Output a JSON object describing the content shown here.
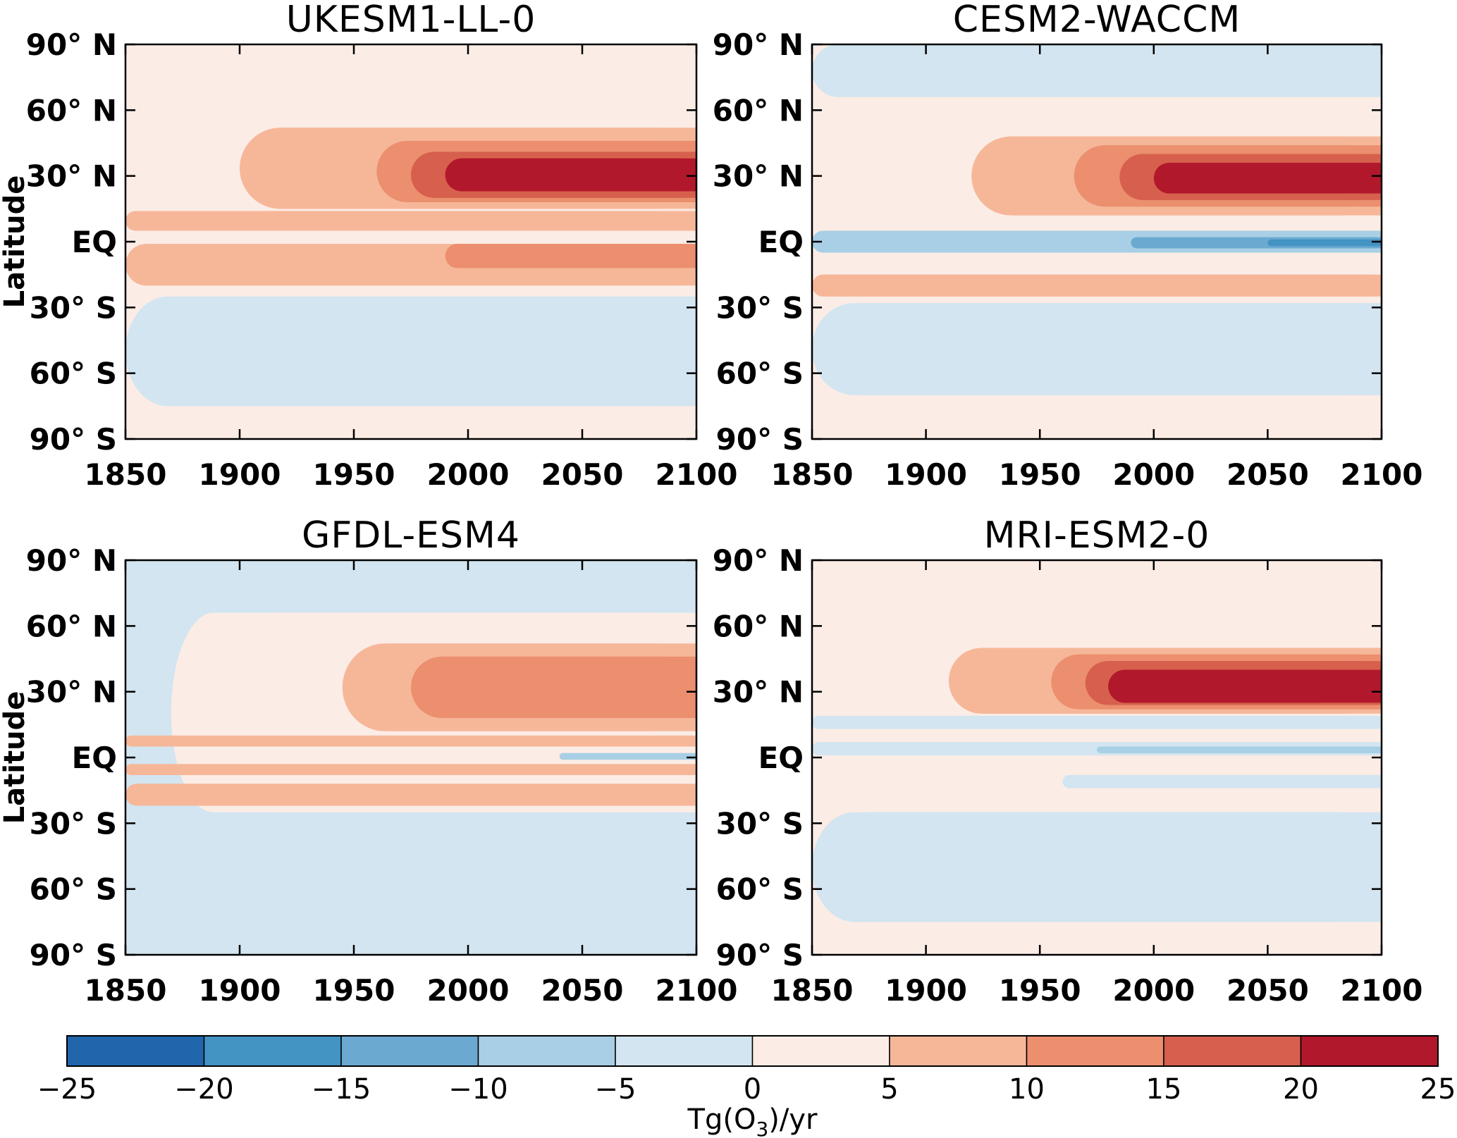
{
  "chart_data": {
    "type": "heatmap",
    "x_ticks": [
      "1850",
      "1900",
      "1950",
      "2000",
      "2050",
      "2100"
    ],
    "x_range": [
      1850,
      2100
    ],
    "y_ticks": [
      "90° N",
      "60° N",
      "30° N",
      "EQ",
      "30° S",
      "60° S",
      "90° S"
    ],
    "y_tick_values": [
      90,
      60,
      30,
      0,
      -30,
      -60,
      -90
    ],
    "y_range": [
      -90,
      90
    ],
    "ylabel": "Latitude",
    "panels": [
      {
        "title": "UKESM1-LL-0",
        "background_value": 2.5,
        "regions": [
          {
            "lat_top": -25,
            "lat_bottom": -75,
            "years": [
              1850,
              2100
            ],
            "value": -2.5
          },
          {
            "lat_top": 14,
            "lat_bottom": 5,
            "years": [
              1850,
              2100
            ],
            "value": 7.5
          },
          {
            "lat_top": -1,
            "lat_bottom": -20,
            "years": [
              1850,
              2100
            ],
            "value": 7.5
          },
          {
            "lat_top": -1,
            "lat_bottom": -12,
            "years": [
              1990,
              2100
            ],
            "value": 12.5
          },
          {
            "lat_top": 52,
            "lat_bottom": 15,
            "years": [
              1900,
              2100
            ],
            "value": 7.5
          },
          {
            "lat_top": 46,
            "lat_bottom": 18,
            "years": [
              1960,
              2100
            ],
            "value": 12.5
          },
          {
            "lat_top": 41,
            "lat_bottom": 20,
            "years": [
              1975,
              2100
            ],
            "value": 17.5
          },
          {
            "lat_top": 38,
            "lat_bottom": 23,
            "years": [
              1990,
              2100
            ],
            "value": 22.5
          }
        ]
      },
      {
        "title": "CESM2-WACCM",
        "background_value": 2.5,
        "regions": [
          {
            "lat_top": 90,
            "lat_bottom": 66,
            "years": [
              1850,
              2100
            ],
            "value": -2.5
          },
          {
            "lat_top": -28,
            "lat_bottom": -70,
            "years": [
              1850,
              2100
            ],
            "value": -2.5
          },
          {
            "lat_top": 5,
            "lat_bottom": -5,
            "years": [
              1850,
              2100
            ],
            "value": -7.5
          },
          {
            "lat_top": 2,
            "lat_bottom": -3,
            "years": [
              1990,
              2100
            ],
            "value": -12.5
          },
          {
            "lat_top": 1,
            "lat_bottom": -2,
            "years": [
              2050,
              2100
            ],
            "value": -17.5
          },
          {
            "lat_top": -15,
            "lat_bottom": -25,
            "years": [
              1850,
              2100
            ],
            "value": 7.5
          },
          {
            "lat_top": 48,
            "lat_bottom": 12,
            "years": [
              1920,
              2100
            ],
            "value": 7.5
          },
          {
            "lat_top": 44,
            "lat_bottom": 16,
            "years": [
              1965,
              2100
            ],
            "value": 12.5
          },
          {
            "lat_top": 40,
            "lat_bottom": 19,
            "years": [
              1985,
              2100
            ],
            "value": 17.5
          },
          {
            "lat_top": 36,
            "lat_bottom": 22,
            "years": [
              2000,
              2100
            ],
            "value": 22.5
          }
        ]
      },
      {
        "title": "GFDL-ESM4",
        "background_value": -2.5,
        "regions": [
          {
            "lat_top": 66,
            "lat_bottom": -25,
            "years": [
              1870,
              2100
            ],
            "value": 2.5
          },
          {
            "lat_top": 10,
            "lat_bottom": 5,
            "years": [
              1850,
              2100
            ],
            "value": 7.5
          },
          {
            "lat_top": -3,
            "lat_bottom": -8,
            "years": [
              1850,
              2100
            ],
            "value": 7.5
          },
          {
            "lat_top": -12,
            "lat_bottom": -22,
            "years": [
              1850,
              2100
            ],
            "value": 7.5
          },
          {
            "lat_top": 2,
            "lat_bottom": -1,
            "years": [
              2040,
              2100
            ],
            "value": -7.5
          },
          {
            "lat_top": 52,
            "lat_bottom": 12,
            "years": [
              1945,
              2100
            ],
            "value": 7.5
          },
          {
            "lat_top": 46,
            "lat_bottom": 18,
            "years": [
              1975,
              2100
            ],
            "value": 12.5
          }
        ]
      },
      {
        "title": "MRI-ESM2-0",
        "background_value": 2.5,
        "regions": [
          {
            "lat_top": -25,
            "lat_bottom": -75,
            "years": [
              1850,
              2100
            ],
            "value": -2.5
          },
          {
            "lat_top": 19,
            "lat_bottom": 13,
            "years": [
              1850,
              2100
            ],
            "value": -2.5
          },
          {
            "lat_top": 7,
            "lat_bottom": 1,
            "years": [
              1850,
              2100
            ],
            "value": -2.5
          },
          {
            "lat_top": 5,
            "lat_bottom": 2,
            "years": [
              1975,
              2100
            ],
            "value": -7.5
          },
          {
            "lat_top": -8,
            "lat_bottom": -14,
            "years": [
              1960,
              2100
            ],
            "value": -2.5
          },
          {
            "lat_top": 50,
            "lat_bottom": 20,
            "years": [
              1910,
              2100
            ],
            "value": 7.5
          },
          {
            "lat_top": 47,
            "lat_bottom": 22,
            "years": [
              1955,
              2100
            ],
            "value": 12.5
          },
          {
            "lat_top": 44,
            "lat_bottom": 24,
            "years": [
              1970,
              2100
            ],
            "value": 17.5
          },
          {
            "lat_top": 40,
            "lat_bottom": 25,
            "years": [
              1980,
              2080
            ],
            "value": 22.5
          }
        ]
      }
    ],
    "colorbar": {
      "ticks": [
        "−25",
        "−20",
        "−15",
        "−10",
        "−5",
        "0",
        "5",
        "10",
        "15",
        "20",
        "25"
      ],
      "range": [
        -25,
        25
      ],
      "bounds": [
        -25,
        -20,
        -15,
        -10,
        -5,
        0,
        5,
        10,
        15,
        20,
        25
      ],
      "colors": [
        "#2166ac",
        "#4393c3",
        "#6ba9d1",
        "#a8cfe5",
        "#d2e5f0",
        "#fbece6",
        "#f6b799",
        "#eb8f6e",
        "#d6604d",
        "#b2182b"
      ],
      "label_prefix": "Tg(O",
      "label_subscript": "3",
      "label_suffix": ")/yr"
    }
  }
}
